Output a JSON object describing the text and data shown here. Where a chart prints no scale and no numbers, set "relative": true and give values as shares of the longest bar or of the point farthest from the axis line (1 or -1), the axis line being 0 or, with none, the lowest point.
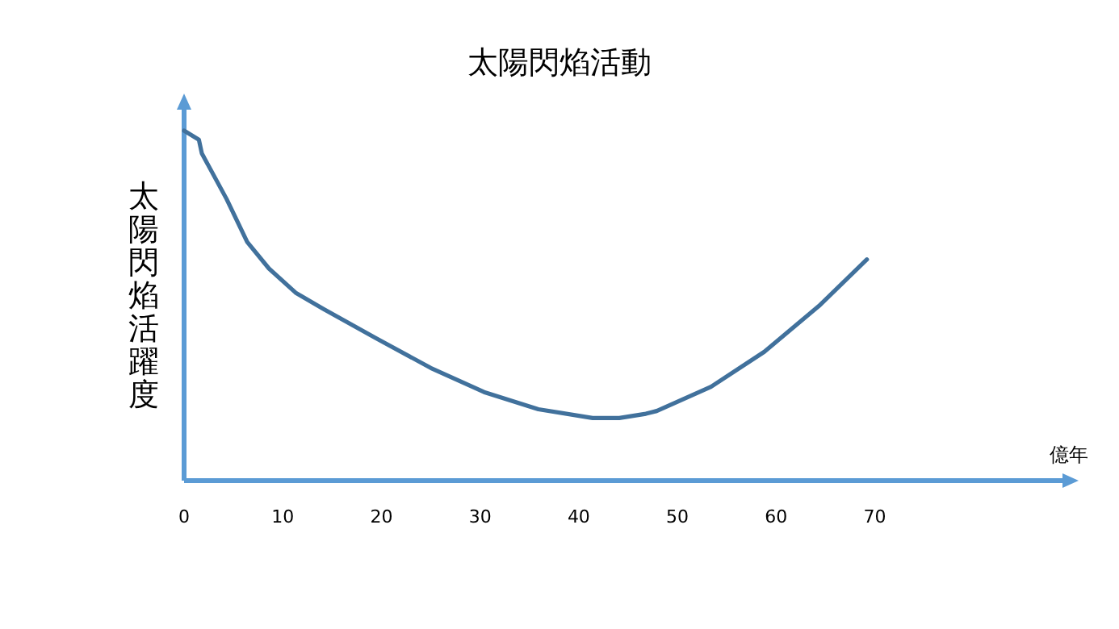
{
  "chart_data": {
    "type": "line",
    "title": "太陽閃焰活動",
    "xlabel": "億年",
    "ylabel": "太陽閃焰活躍度",
    "relative": true,
    "xlim": [
      0,
      90
    ],
    "xticks": [
      0,
      10,
      20,
      30,
      40,
      50,
      60,
      70
    ],
    "series": [
      {
        "color": "#41719c",
        "x": [
          0,
          1.5,
          1.8,
          4.3,
          6.4,
          8.6,
          11.3,
          14.1,
          19.5,
          25.0,
          30.4,
          35.9,
          41.4,
          44.1,
          46.8,
          47.9,
          53.4,
          58.8,
          64.3,
          69.2
        ],
        "values": [
          1,
          0.974,
          0.935,
          0.805,
          0.682,
          0.606,
          0.537,
          0.491,
          0.406,
          0.322,
          0.253,
          0.204,
          0.179,
          0.179,
          0.191,
          0.199,
          0.268,
          0.368,
          0.498,
          0.632
        ]
      }
    ]
  }
}
